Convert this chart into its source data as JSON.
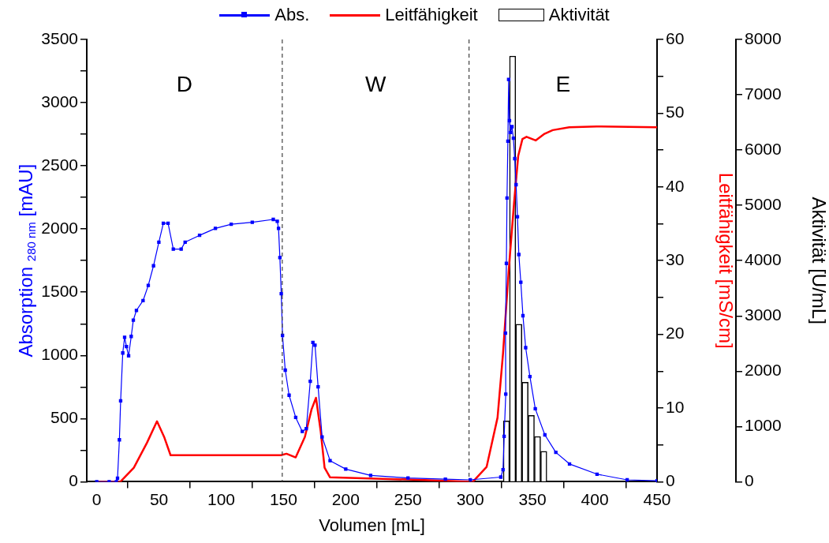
{
  "chart_data": {
    "type": "line",
    "xlabel": "Volumen [mL]",
    "ylabel": "Absorption $_{280 nm}$ [mAU]",
    "y2label": "Leitfähigkeit [mS/cm]",
    "y3label": "Aktivität [U/mL]",
    "legend": "top",
    "grid": false,
    "xlim": [
      -8,
      450
    ],
    "xticks": [
      0,
      50,
      100,
      150,
      200,
      250,
      300,
      350,
      400,
      450
    ],
    "ylim": [
      0,
      3500
    ],
    "yticks": [
      0,
      {
        "value": 250,
        "label": null
      },
      500,
      {
        "value": 750,
        "label": null
      },
      1000,
      {
        "value": 1250,
        "label": null
      },
      1500,
      {
        "value": 1750,
        "label": null
      },
      2000,
      {
        "value": 2250,
        "label": null
      },
      2500,
      {
        "value": 2750,
        "label": null
      },
      3000,
      {
        "value": 3250,
        "label": null
      },
      3500
    ],
    "y2lim": [
      0,
      60
    ],
    "y2ticks": [
      0,
      {
        "value": 5,
        "label": null
      },
      10,
      {
        "value": 15,
        "label": null
      },
      20,
      {
        "value": 25,
        "label": null
      },
      30,
      {
        "value": 35,
        "label": null
      },
      40,
      {
        "value": 45,
        "label": null
      },
      50,
      {
        "value": 55,
        "label": null
      },
      60
    ],
    "y3lim": [
      0,
      8000
    ],
    "y3ticks": [
      0,
      1000,
      2000,
      3000,
      4000,
      5000,
      6000,
      7000,
      8000
    ],
    "ref_lines": [
      {
        "axis": "x",
        "value": 149,
        "color": "#404040",
        "line_style": "dashed"
      },
      {
        "axis": "x",
        "value": 299,
        "color": "#404040",
        "line_style": "dashed"
      }
    ],
    "annotations": [
      "D",
      "W",
      "E"
    ],
    "series": [
      {
        "name": "Abs.",
        "axis": "y",
        "color": "#0000ff",
        "marker": "square",
        "x": [
          0,
          10,
          15.8,
          16.7,
          18.2,
          19.2,
          20.9,
          22.4,
          23.9,
          25.6,
          27.7,
          29.4,
          31.9,
          37.2,
          41.4,
          45.6,
          49.9,
          53.5,
          57.3,
          61.5,
          67.8,
          71,
          82.6,
          95.3,
          108,
          124.9,
          141.8,
          145,
          146,
          147.1,
          148.2,
          149.2,
          151.4,
          154.5,
          159.8,
          165.1,
          168.3,
          171.5,
          173.6,
          175.3,
          177.8,
          181,
          187.4,
          200,
          220,
          250,
          280,
          300,
          324.5,
          326.3,
          327.2,
          328.5,
          328.3,
          329,
          329.5,
          330.2,
          330.8,
          331.5,
          332.4,
          333.5,
          334.6,
          335.7,
          336.8,
          337.9,
          339,
          340.6,
          342.3,
          344.5,
          347.9,
          352.2,
          359.9,
          368.7,
          379.7,
          401.8,
          426,
          450
        ],
        "values": [
          0,
          0,
          0,
          28,
          332,
          640,
          1019,
          1143,
          1070,
          997,
          1150,
          1279,
          1356,
          1433,
          1554,
          1709,
          1896,
          2046,
          2046,
          1841,
          1841,
          1896,
          1950,
          2005,
          2038,
          2053,
          2076,
          2061,
          2005,
          1774,
          1488,
          1158,
          883,
          685,
          509,
          398,
          420,
          795,
          1103,
          1081,
          751,
          355,
          167,
          100,
          50,
          30,
          20,
          15,
          37,
          95,
          359,
          693,
          1176,
          1728,
          2246,
          2695,
          3184,
          2857,
          2764,
          2810,
          2719,
          2557,
          2351,
          2097,
          1798,
          1579,
          1314,
          1061,
          832,
          578,
          371,
          233,
          141,
          60,
          15,
          8
        ]
      },
      {
        "name": "Leitfähigkeit",
        "axis": "y2",
        "color": "#ff0000",
        "marker": "none",
        "x": [
          0,
          19,
          29.8,
          40.4,
          48.4,
          54.1,
          59.3,
          100,
          148,
          152.4,
          159.8,
          167.2,
          172.5,
          176.1,
          179.9,
          183,
          187.4,
          250,
          302.1,
          313.1,
          321.9,
          326.3,
          330.8,
          335.2,
          338.5,
          341.9,
          345.2,
          352.5,
          359.6,
          366.2,
          379.5,
          401.6,
          450
        ],
        "values": [
          0,
          0,
          1.9,
          5.3,
          8.2,
          6.1,
          3.6,
          3.6,
          3.6,
          3.8,
          3.3,
          6.1,
          9.8,
          11.4,
          6.8,
          1.9,
          0.6,
          0.3,
          0,
          2,
          8.7,
          17.4,
          28.5,
          37.9,
          44.2,
          46.5,
          46.8,
          46.3,
          47.2,
          47.7,
          48.1,
          48.2,
          48.1
        ]
      },
      {
        "name": "Aktivität",
        "type": "bar",
        "axis": "y3",
        "color": "#ffffff",
        "x": [
          329,
          334,
          339,
          344,
          349,
          354,
          359
        ],
        "values": [
          1100,
          7700,
          2850,
          1800,
          1200,
          820,
          550
        ]
      }
    ]
  }
}
